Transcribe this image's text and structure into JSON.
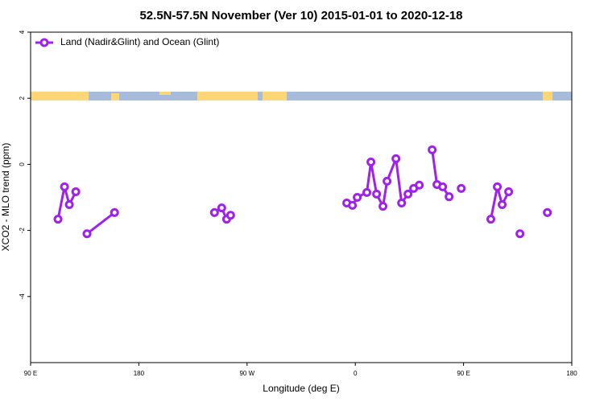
{
  "chart_data": {
    "type": "line",
    "title": "52.5N-57.5N November (Ver 10)   2015-01-01 to 2020-12-18",
    "xlabel": "Longitude (deg E)",
    "ylabel": "XCO2 - MLO trend (ppm)",
    "xlim": [
      90,
      540
    ],
    "ylim": [
      -6,
      4
    ],
    "xticks": [
      {
        "value": 90,
        "label": "90 E"
      },
      180,
      {
        "value": 270,
        "label": "90 W"
      },
      {
        "value": 360,
        "label": "0"
      },
      {
        "value": 450,
        "label": "90 E"
      },
      {
        "value": 540,
        "label": "180"
      }
    ],
    "yticks": [
      4,
      2,
      0,
      -2,
      -4
    ],
    "legend": "upper left",
    "series": [
      {
        "name": "Land (Nadir&Glint) and Ocean (Glint)",
        "color": "#a020f0",
        "x": [
          112.8,
          118.2,
          122.2,
          127.6,
          null,
          136.9,
          159.8,
          null,
          242.9,
          248.9,
          253.0,
          256.3,
          null,
          352.9,
          357.6,
          361.6,
          369.6,
          373.0,
          377.7,
          383.0,
          386.4,
          393.8,
          398.5,
          403.8,
          408.5,
          413.2,
          null,
          423.9,
          427.9,
          432.6,
          438.0,
          null,
          448.1,
          null,
          472.7,
          478.1,
          482.1,
          487.5,
          null,
          496.9,
          null,
          519.7
        ],
        "values": [
          -1.66,
          -0.68,
          -1.22,
          -0.83,
          null,
          -2.1,
          -1.46,
          null,
          -1.46,
          -1.32,
          -1.66,
          -1.54,
          null,
          -1.17,
          -1.24,
          -1.0,
          -0.85,
          0.07,
          -0.9,
          -1.27,
          -0.51,
          0.17,
          -1.17,
          -0.9,
          -0.73,
          -0.63,
          null,
          0.44,
          -0.61,
          -0.68,
          -0.98,
          null,
          -0.73,
          null,
          -1.66,
          -0.68,
          -1.22,
          -0.83,
          null,
          -2.1,
          null,
          -1.46
        ]
      }
    ]
  }
}
